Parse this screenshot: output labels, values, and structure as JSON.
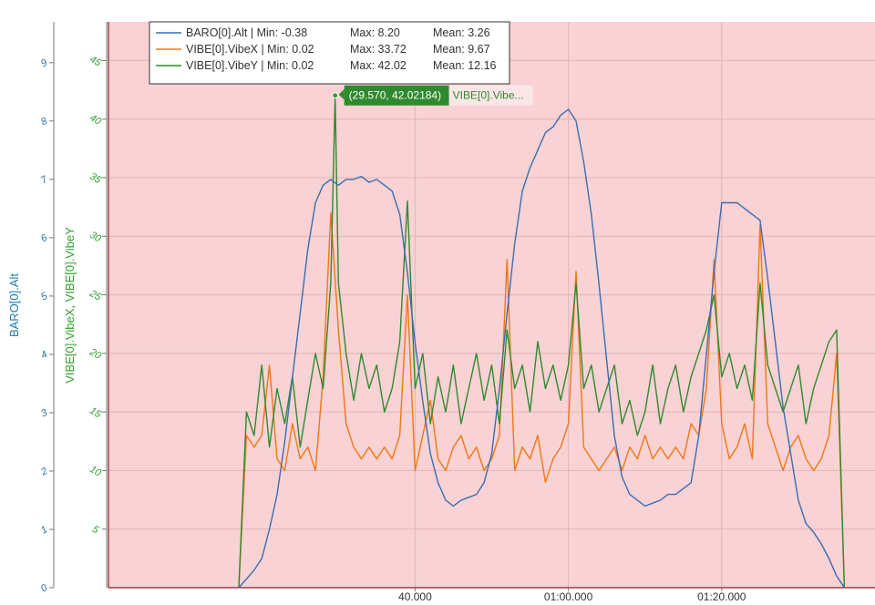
{
  "chart_data": {
    "type": "line",
    "colors": {
      "plot_background": "#f8d2d4",
      "baro_axis": "#1f77b4",
      "vibe_axis": "#2ca02c"
    },
    "x_axis": {
      "unit": "seconds",
      "range": [
        0,
        100
      ],
      "ticks": [
        {
          "value": 40,
          "label": "40.000"
        },
        {
          "value": 60,
          "label": "01:00.000"
        },
        {
          "value": 80,
          "label": "01:20.000"
        }
      ]
    },
    "y_axis_left": {
      "label": "BARO[0].Alt",
      "range": [
        0,
        9.7
      ],
      "ticks": [
        "0",
        "1",
        "2",
        "3",
        "4",
        "5",
        "6",
        "7",
        "8",
        "9"
      ]
    },
    "y_axis_right": {
      "label": "VIBE[0].VibeX, VIBE[0].VibeY",
      "range": [
        0,
        48.3
      ],
      "ticks": [
        "5",
        "10",
        "15",
        "20",
        "25",
        "30",
        "35",
        "40",
        "45"
      ]
    },
    "series": [
      {
        "name": "BARO[0].Alt",
        "axis": "left",
        "color": "#3a6db0",
        "legend": {
          "name": "BARO[0].Alt",
          "min": "Min: -0.38",
          "max": "Max: 8.20",
          "mean": "Mean: 3.26"
        },
        "points": [
          [
            17,
            0
          ],
          [
            18,
            0.15
          ],
          [
            19,
            0.3
          ],
          [
            20,
            0.5
          ],
          [
            21,
            1
          ],
          [
            22,
            1.6
          ],
          [
            23,
            2.5
          ],
          [
            24,
            3.6
          ],
          [
            25,
            4.7
          ],
          [
            26,
            5.8
          ],
          [
            27,
            6.6
          ],
          [
            28,
            6.9
          ],
          [
            29,
            7.0
          ],
          [
            30,
            6.9
          ],
          [
            31,
            7.0
          ],
          [
            32,
            7.0
          ],
          [
            33,
            7.05
          ],
          [
            34,
            6.95
          ],
          [
            35,
            7.0
          ],
          [
            36,
            6.9
          ],
          [
            37,
            6.8
          ],
          [
            38,
            6.4
          ],
          [
            39,
            5.4
          ],
          [
            40,
            4.2
          ],
          [
            41,
            3.2
          ],
          [
            42,
            2.3
          ],
          [
            43,
            1.8
          ],
          [
            44,
            1.5
          ],
          [
            45,
            1.4
          ],
          [
            46,
            1.5
          ],
          [
            47,
            1.55
          ],
          [
            48,
            1.6
          ],
          [
            49,
            1.8
          ],
          [
            50,
            2.3
          ],
          [
            51,
            3.4
          ],
          [
            52,
            4.7
          ],
          [
            53,
            5.9
          ],
          [
            54,
            6.8
          ],
          [
            55,
            7.2
          ],
          [
            56,
            7.5
          ],
          [
            57,
            7.8
          ],
          [
            58,
            7.9
          ],
          [
            59,
            8.1
          ],
          [
            60,
            8.2
          ],
          [
            61,
            8.0
          ],
          [
            62,
            7.3
          ],
          [
            63,
            6.4
          ],
          [
            64,
            5.2
          ],
          [
            65,
            3.9
          ],
          [
            66,
            2.6
          ],
          [
            67,
            1.9
          ],
          [
            68,
            1.6
          ],
          [
            69,
            1.5
          ],
          [
            70,
            1.4
          ],
          [
            71,
            1.45
          ],
          [
            72,
            1.5
          ],
          [
            73,
            1.6
          ],
          [
            74,
            1.6
          ],
          [
            75,
            1.7
          ],
          [
            76,
            1.8
          ],
          [
            77,
            2.6
          ],
          [
            78,
            4.0
          ],
          [
            79,
            5.4
          ],
          [
            80,
            6.6
          ],
          [
            81,
            6.6
          ],
          [
            82,
            6.6
          ],
          [
            83,
            6.5
          ],
          [
            84,
            6.4
          ],
          [
            85,
            6.3
          ],
          [
            86,
            5.3
          ],
          [
            87,
            4.2
          ],
          [
            88,
            3.1
          ],
          [
            89,
            2.3
          ],
          [
            90,
            1.5
          ],
          [
            91,
            1.1
          ],
          [
            92,
            0.95
          ],
          [
            93,
            0.75
          ],
          [
            94,
            0.5
          ],
          [
            95,
            0.2
          ],
          [
            96,
            0
          ]
        ]
      },
      {
        "name": "VIBE[0].VibeX",
        "axis": "right",
        "color": "#f07814",
        "legend": {
          "name": "VIBE[0].VibeX",
          "min": "Min: 0.02",
          "max": "Max: 33.72",
          "mean": "Mean: 9.67"
        },
        "points": [
          [
            17,
            0
          ],
          [
            18,
            13
          ],
          [
            19,
            12
          ],
          [
            20,
            13
          ],
          [
            21,
            19
          ],
          [
            22,
            11
          ],
          [
            23,
            10
          ],
          [
            24,
            14
          ],
          [
            25,
            11
          ],
          [
            26,
            12
          ],
          [
            27,
            10
          ],
          [
            28,
            18
          ],
          [
            29,
            32
          ],
          [
            30,
            22
          ],
          [
            31,
            14
          ],
          [
            32,
            12
          ],
          [
            33,
            11
          ],
          [
            34,
            12
          ],
          [
            35,
            11
          ],
          [
            36,
            12
          ],
          [
            37,
            11
          ],
          [
            38,
            13
          ],
          [
            39,
            25
          ],
          [
            40,
            10
          ],
          [
            41,
            13
          ],
          [
            42,
            16
          ],
          [
            43,
            11
          ],
          [
            44,
            10
          ],
          [
            45,
            12
          ],
          [
            46,
            13
          ],
          [
            47,
            11
          ],
          [
            48,
            12
          ],
          [
            49,
            10
          ],
          [
            50,
            11
          ],
          [
            51,
            13
          ],
          [
            52,
            28
          ],
          [
            53,
            10
          ],
          [
            54,
            12
          ],
          [
            55,
            11
          ],
          [
            56,
            13
          ],
          [
            57,
            9
          ],
          [
            58,
            11
          ],
          [
            59,
            12
          ],
          [
            60,
            14
          ],
          [
            61,
            27
          ],
          [
            62,
            12
          ],
          [
            63,
            11
          ],
          [
            64,
            10
          ],
          [
            65,
            11
          ],
          [
            66,
            12
          ],
          [
            67,
            10
          ],
          [
            68,
            12
          ],
          [
            69,
            11
          ],
          [
            70,
            13
          ],
          [
            71,
            11
          ],
          [
            72,
            12
          ],
          [
            73,
            11
          ],
          [
            74,
            12
          ],
          [
            75,
            11
          ],
          [
            76,
            14
          ],
          [
            77,
            13
          ],
          [
            78,
            17
          ],
          [
            79,
            28
          ],
          [
            80,
            14
          ],
          [
            81,
            11
          ],
          [
            82,
            12
          ],
          [
            83,
            14
          ],
          [
            84,
            11
          ],
          [
            85,
            31
          ],
          [
            86,
            14
          ],
          [
            87,
            12
          ],
          [
            88,
            10
          ],
          [
            89,
            12
          ],
          [
            90,
            13
          ],
          [
            91,
            11
          ],
          [
            92,
            10
          ],
          [
            93,
            11
          ],
          [
            94,
            13
          ],
          [
            95,
            20
          ],
          [
            96,
            0
          ]
        ]
      },
      {
        "name": "VIBE[0].VibeY",
        "axis": "right",
        "color": "#2f8a2f",
        "legend": {
          "name": "VIBE[0].VibeY",
          "min": "Min: 0.02",
          "max": "Max: 42.02",
          "mean": "Mean: 12.16"
        },
        "points": [
          [
            17,
            0
          ],
          [
            18,
            15
          ],
          [
            19,
            13
          ],
          [
            20,
            19
          ],
          [
            21,
            12
          ],
          [
            22,
            17
          ],
          [
            23,
            14
          ],
          [
            24,
            18
          ],
          [
            25,
            12
          ],
          [
            26,
            16
          ],
          [
            27,
            20
          ],
          [
            28,
            17
          ],
          [
            29,
            26
          ],
          [
            29.57,
            42.02
          ],
          [
            30,
            26
          ],
          [
            31,
            20
          ],
          [
            32,
            16
          ],
          [
            33,
            20
          ],
          [
            34,
            17
          ],
          [
            35,
            19
          ],
          [
            36,
            15
          ],
          [
            37,
            17
          ],
          [
            38,
            21
          ],
          [
            39,
            33
          ],
          [
            40,
            17
          ],
          [
            41,
            20
          ],
          [
            42,
            14
          ],
          [
            43,
            18
          ],
          [
            44,
            15
          ],
          [
            45,
            19
          ],
          [
            46,
            14
          ],
          [
            47,
            17
          ],
          [
            48,
            20
          ],
          [
            49,
            16
          ],
          [
            50,
            19
          ],
          [
            51,
            14
          ],
          [
            52,
            22
          ],
          [
            53,
            17
          ],
          [
            54,
            19
          ],
          [
            55,
            15
          ],
          [
            56,
            21
          ],
          [
            57,
            17
          ],
          [
            58,
            19
          ],
          [
            59,
            16
          ],
          [
            60,
            19
          ],
          [
            61,
            26
          ],
          [
            62,
            17
          ],
          [
            63,
            19
          ],
          [
            64,
            15
          ],
          [
            65,
            17
          ],
          [
            66,
            19
          ],
          [
            67,
            14
          ],
          [
            68,
            16
          ],
          [
            69,
            13
          ],
          [
            70,
            15
          ],
          [
            71,
            19
          ],
          [
            72,
            14
          ],
          [
            73,
            17
          ],
          [
            74,
            19
          ],
          [
            75,
            15
          ],
          [
            76,
            18
          ],
          [
            77,
            20
          ],
          [
            78,
            22
          ],
          [
            79,
            25
          ],
          [
            80,
            18
          ],
          [
            81,
            20
          ],
          [
            82,
            17
          ],
          [
            83,
            19
          ],
          [
            84,
            16
          ],
          [
            85,
            26
          ],
          [
            86,
            19
          ],
          [
            87,
            17
          ],
          [
            88,
            15
          ],
          [
            89,
            17
          ],
          [
            90,
            19
          ],
          [
            91,
            14
          ],
          [
            92,
            17
          ],
          [
            93,
            19
          ],
          [
            94,
            21
          ],
          [
            95,
            22
          ],
          [
            96,
            0
          ]
        ]
      }
    ],
    "tooltip": {
      "value": "(29.570, 42.02184)",
      "label": "VIBE[0].Vibe...",
      "x": 29.57,
      "y": 42.02184,
      "series": "VIBE[0].VibeY"
    }
  }
}
